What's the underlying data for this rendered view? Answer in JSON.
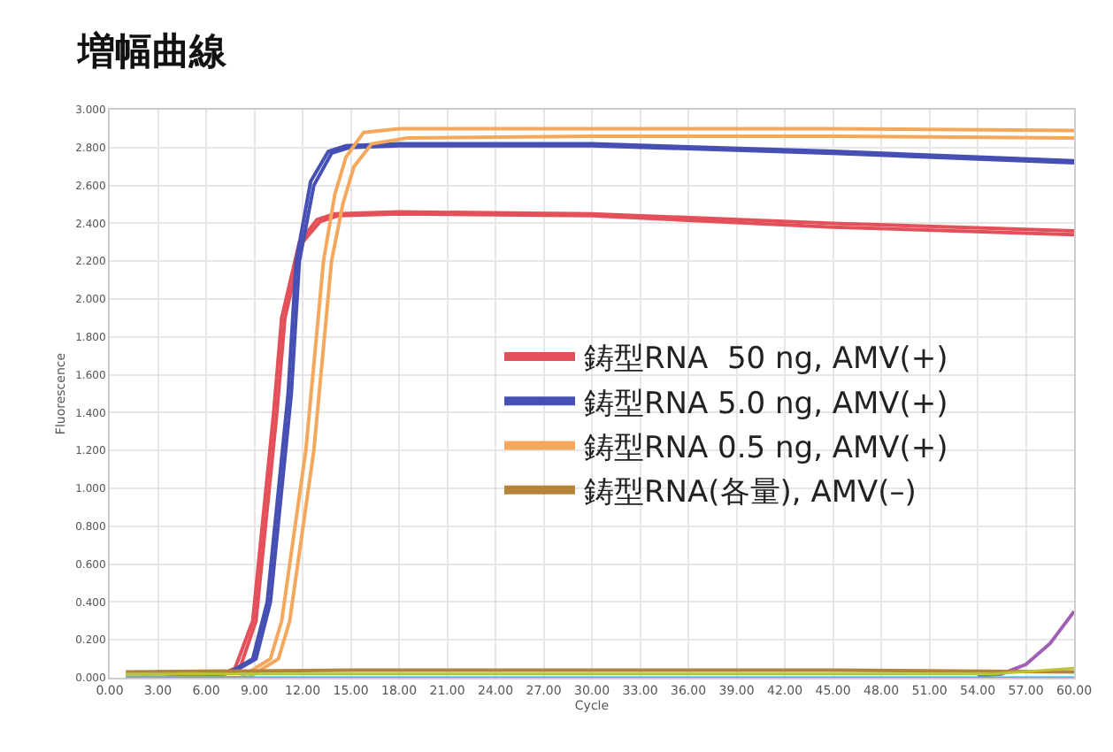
{
  "chart_data": {
    "type": "line",
    "title": "増幅曲線",
    "xlabel": "Cycle",
    "ylabel": "Fluorescence",
    "xlim": [
      0,
      60
    ],
    "xticks": [
      {
        "value": 0,
        "label": "0.00"
      },
      {
        "value": 3,
        "label": "3.00"
      },
      {
        "value": 6,
        "label": "6.00"
      },
      {
        "value": 9,
        "label": "9.00"
      },
      {
        "value": 12,
        "label": "12.00"
      },
      {
        "value": 15,
        "label": "15.00"
      },
      {
        "value": 18,
        "label": "18.00"
      },
      {
        "value": 21,
        "label": "21.00"
      },
      {
        "value": 24,
        "label": "24.00"
      },
      {
        "value": 27,
        "label": "27.00"
      },
      {
        "value": 30,
        "label": "30.00"
      },
      {
        "value": 33,
        "label": "33.00"
      },
      {
        "value": 36,
        "label": "36.00"
      },
      {
        "value": 39,
        "label": "39.00"
      },
      {
        "value": 42,
        "label": "42.00"
      },
      {
        "value": 45,
        "label": "45.00"
      },
      {
        "value": 48,
        "label": "48.00"
      },
      {
        "value": 51,
        "label": "51.00"
      },
      {
        "value": 54,
        "label": "54.00"
      },
      {
        "value": 57,
        "label": "57.00"
      },
      {
        "value": 60,
        "label": "60.00"
      }
    ],
    "ylim": [
      0,
      3
    ],
    "yticks": [
      {
        "value": 0,
        "label": "0.000"
      },
      {
        "value": 0.2,
        "label": "0.200"
      },
      {
        "value": 0.4,
        "label": "0.400"
      },
      {
        "value": 0.6,
        "label": "0.600"
      },
      {
        "value": 0.8,
        "label": "0.800"
      },
      {
        "value": 1.0,
        "label": "1.000"
      },
      {
        "value": 1.2,
        "label": "1.200"
      },
      {
        "value": 1.4,
        "label": "1.400"
      },
      {
        "value": 1.6,
        "label": "1.600"
      },
      {
        "value": 1.8,
        "label": "1.800"
      },
      {
        "value": 2.0,
        "label": "2.000"
      },
      {
        "value": 2.2,
        "label": "2.200"
      },
      {
        "value": 2.4,
        "label": "2.400"
      },
      {
        "value": 2.6,
        "label": "2.600"
      },
      {
        "value": 2.8,
        "label": "2.800"
      },
      {
        "value": 3.0,
        "label": "3.000"
      }
    ],
    "grid": true,
    "legend": "right",
    "marker": "none",
    "line_style": "solid",
    "series": [
      {
        "name": "鋳型RNA  50 ng, AMV(+)",
        "color": "#e4505a",
        "x": [
          1,
          3,
          6,
          7,
          7.8,
          8.9,
          10.2,
          10.7,
          11.8,
          12.9,
          14,
          18,
          30,
          45,
          60
        ],
        "values": [
          0.02,
          0.01,
          0.01,
          0.02,
          0.05,
          0.3,
          1.4,
          1.9,
          2.3,
          2.42,
          2.45,
          2.46,
          2.45,
          2.4,
          2.36
        ]
      },
      {
        "color": "#e4505a",
        "x": [
          2,
          3.5,
          6,
          7.2,
          8.1,
          9.1,
          10.4,
          10.9,
          12,
          13.1,
          14.2,
          18,
          30,
          45,
          60
        ],
        "values": [
          0.02,
          0.01,
          0.01,
          0.02,
          0.05,
          0.3,
          1.4,
          1.9,
          2.3,
          2.41,
          2.44,
          2.45,
          2.44,
          2.38,
          2.34
        ]
      },
      {
        "name": "鋳型RNA 5.0 ng, AMV(+)",
        "color": "#4650b4",
        "x": [
          6,
          7.5,
          8.9,
          9.8,
          11.1,
          11.6,
          12.5,
          13.6,
          14.7,
          18,
          30,
          45,
          60
        ],
        "values": [
          0.02,
          0.03,
          0.1,
          0.4,
          1.5,
          2.2,
          2.62,
          2.78,
          2.81,
          2.82,
          2.82,
          2.78,
          2.73
        ]
      },
      {
        "color": "#4650b4",
        "x": [
          6.5,
          7.7,
          9.1,
          10,
          11.3,
          11.8,
          12.7,
          13.8,
          14.9,
          18,
          30,
          45,
          60
        ],
        "values": [
          0.02,
          0.03,
          0.1,
          0.4,
          1.5,
          2.2,
          2.6,
          2.77,
          2.8,
          2.81,
          2.81,
          2.77,
          2.72
        ]
      },
      {
        "name": "鋳型RNA 0.5 ng, AMV(+)",
        "color": "#f4a85e",
        "x": [
          1,
          3,
          6,
          8.1,
          10,
          10.7,
          12.2,
          13.3,
          14,
          14.7,
          15.8,
          18,
          30,
          45,
          60
        ],
        "values": [
          0.01,
          0.0,
          0.0,
          0.0,
          0.1,
          0.3,
          1.2,
          2.2,
          2.55,
          2.75,
          2.88,
          2.9,
          2.9,
          2.9,
          2.89
        ]
      },
      {
        "color": "#f4a85e",
        "x": [
          2.5,
          4,
          6,
          8.6,
          10.5,
          11.2,
          12.7,
          13.8,
          14.5,
          15.2,
          16.3,
          18.5,
          30,
          45,
          60
        ],
        "values": [
          0.01,
          0.0,
          0.0,
          0.0,
          0.1,
          0.3,
          1.2,
          2.2,
          2.5,
          2.7,
          2.82,
          2.85,
          2.86,
          2.86,
          2.85
        ]
      },
      {
        "color": "#a060b4",
        "x": [
          54,
          55.5,
          57,
          58.5,
          60
        ],
        "values": [
          0.01,
          0.02,
          0.07,
          0.18,
          0.35
        ]
      },
      {
        "name": "鋳型RNA(各量), AMV(–)",
        "color": "#b5843c",
        "x": [
          1,
          15,
          30,
          45,
          60
        ],
        "values": [
          0.03,
          0.04,
          0.04,
          0.04,
          0.03
        ]
      },
      {
        "color": "#bcc436",
        "x": [
          1,
          15,
          30,
          45,
          55,
          60
        ],
        "values": [
          0.02,
          0.02,
          0.02,
          0.02,
          0.02,
          0.05
        ]
      },
      {
        "color": "#2cb8e4",
        "x": [
          1,
          15,
          30,
          45,
          60
        ],
        "values": [
          0.0,
          0.0,
          0.0,
          0.0,
          0.0
        ]
      }
    ]
  }
}
